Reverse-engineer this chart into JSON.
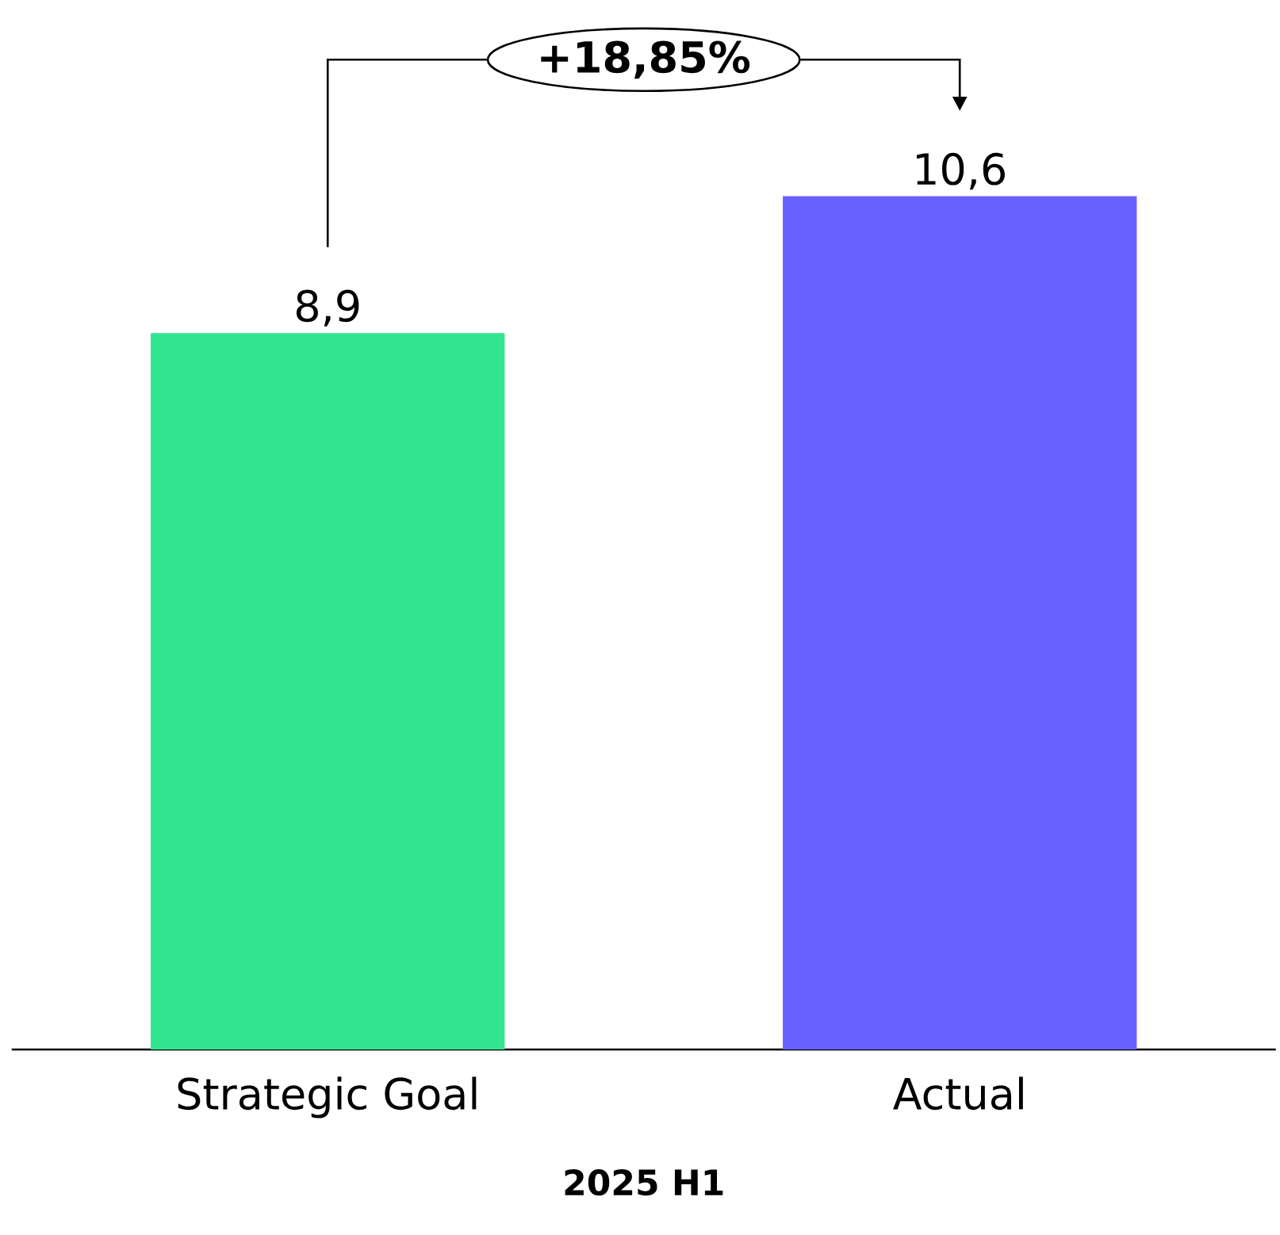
{
  "chart_data": {
    "type": "bar",
    "categories": [
      "Strategic Goal",
      "Actual"
    ],
    "values": [
      8.9,
      10.6
    ],
    "colors": [
      "#31e58f",
      "#6a5fff"
    ],
    "value_labels": [
      "8,9",
      "10,6"
    ],
    "xlabel": "2025 H1",
    "annotations": [
      "+18,85%"
    ]
  }
}
